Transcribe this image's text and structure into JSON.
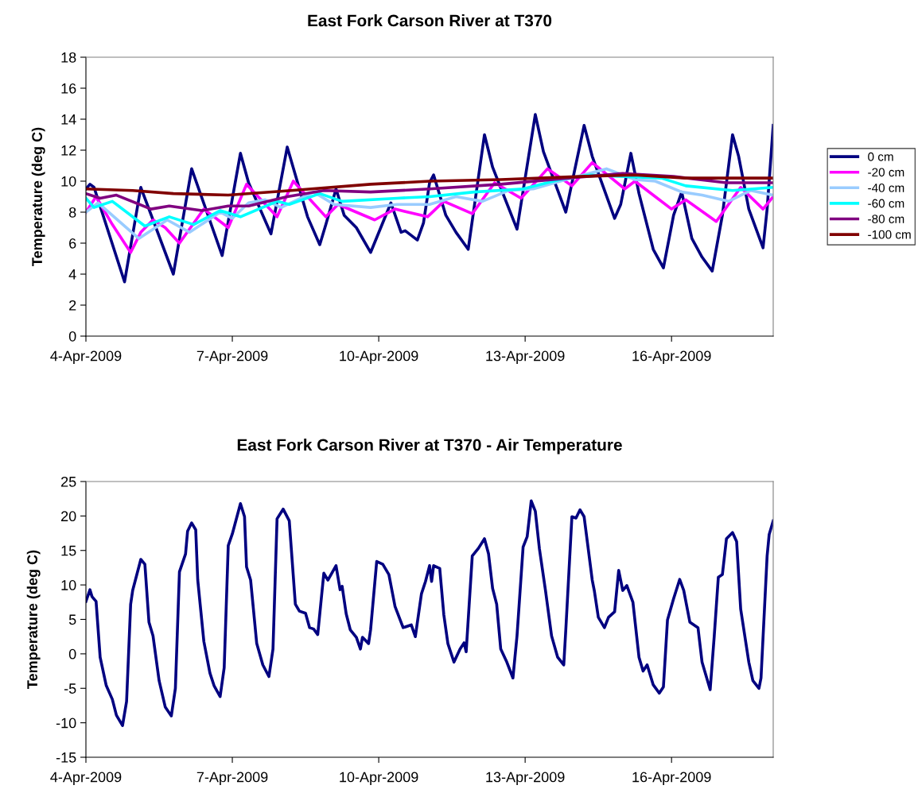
{
  "chart_data": [
    {
      "type": "line",
      "title": "East Fork Carson River at T370",
      "ylabel": "Temperature (deg C)",
      "xlim": [
        "2009-04-04T00:00",
        "2009-04-18T02:00"
      ],
      "xticks": [
        {
          "value": "2009-04-04",
          "label": "4-Apr-2009"
        },
        {
          "value": "2009-04-07",
          "label": "7-Apr-2009"
        },
        {
          "value": "2009-04-10",
          "label": "10-Apr-2009"
        },
        {
          "value": "2009-04-13",
          "label": "13-Apr-2009"
        },
        {
          "value": "2009-04-16",
          "label": "16-Apr-2009"
        }
      ],
      "ylim": [
        0,
        18
      ],
      "yticks": [
        0,
        2,
        4,
        6,
        8,
        10,
        12,
        14,
        16,
        18
      ],
      "grid": false,
      "legend": "right",
      "series": [
        {
          "name": "0 cm",
          "color": "#000080",
          "x": [
            "2009-04-04T00:00",
            "2009-04-04T02:00",
            "2009-04-04T04:00",
            "2009-04-04T19:00",
            "2009-04-05T03:00",
            "2009-04-05T19:00",
            "2009-04-06T04:00",
            "2009-04-06T19:00",
            "2009-04-07T04:00",
            "2009-04-07T08:00",
            "2009-04-07T19:00",
            "2009-04-08T03:00",
            "2009-04-08T13:00",
            "2009-04-08T19:00",
            "2009-04-08T22:00",
            "2009-04-09T03:00",
            "2009-04-09T07:00",
            "2009-04-09T13:00",
            "2009-04-09T20:00",
            "2009-04-10T06:00",
            "2009-04-10T11:00",
            "2009-04-10T13:00",
            "2009-04-10T19:00",
            "2009-04-10T22:00",
            "2009-04-11T01:00",
            "2009-04-11T03:00",
            "2009-04-11T09:00",
            "2009-04-11T14:00",
            "2009-04-11T20:00",
            "2009-04-12T04:00",
            "2009-04-12T08:00",
            "2009-04-12T20:00",
            "2009-04-13T05:00",
            "2009-04-13T09:00",
            "2009-04-13T20:00",
            "2009-04-14T05:00",
            "2009-04-14T09:00",
            "2009-04-14T20:00",
            "2009-04-14T23:00",
            "2009-04-15T04:00",
            "2009-04-15T08:00",
            "2009-04-15T15:00",
            "2009-04-15T20:00",
            "2009-04-16T01:00",
            "2009-04-16T05:00",
            "2009-04-16T10:00",
            "2009-04-16T15:00",
            "2009-04-16T20:00",
            "2009-04-17T01:00",
            "2009-04-17T06:00",
            "2009-04-17T09:00",
            "2009-04-17T14:00",
            "2009-04-17T21:00",
            "2009-04-17T23:00",
            "2009-04-18T02:00"
          ],
          "values": [
            9.5,
            9.8,
            9.6,
            3.5,
            9.6,
            4.0,
            10.8,
            5.2,
            11.8,
            9.9,
            6.6,
            12.2,
            7.7,
            5.9,
            7.2,
            9.5,
            7.8,
            7.0,
            5.4,
            8.6,
            6.7,
            6.8,
            6.2,
            7.3,
            9.9,
            10.4,
            7.8,
            6.7,
            5.6,
            13.0,
            10.9,
            6.9,
            14.3,
            11.9,
            8.0,
            13.6,
            11.6,
            7.6,
            8.5,
            11.8,
            9.2,
            5.6,
            4.4,
            7.8,
            9.3,
            6.3,
            5.1,
            4.2,
            7.8,
            13.0,
            11.6,
            8.2,
            5.7,
            8.2,
            13.6
          ]
        },
        {
          "name": "-20 cm",
          "color": "#ff00ff",
          "x": [
            "2009-04-04T00:00",
            "2009-04-04T05:00",
            "2009-04-04T13:00",
            "2009-04-04T22:00",
            "2009-04-05T03:00",
            "2009-04-05T09:00",
            "2009-04-05T15:00",
            "2009-04-05T22:00",
            "2009-04-06T10:00",
            "2009-04-06T22:00",
            "2009-04-07T07:00",
            "2009-04-07T22:00",
            "2009-04-08T06:00",
            "2009-04-08T22:00",
            "2009-04-09T04:00",
            "2009-04-09T13:00",
            "2009-04-09T22:00",
            "2009-04-10T08:00",
            "2009-04-11T00:00",
            "2009-04-11T08:00",
            "2009-04-11T22:00",
            "2009-04-12T09:00",
            "2009-04-12T22:00",
            "2009-04-13T11:00",
            "2009-04-13T23:00",
            "2009-04-14T09:00",
            "2009-04-15T01:00",
            "2009-04-15T06:00",
            "2009-04-15T16:00",
            "2009-04-16T00:00",
            "2009-04-16T07:00",
            "2009-04-16T22:00",
            "2009-04-17T10:00",
            "2009-04-17T21:00",
            "2009-04-18T02:00"
          ],
          "values": [
            8.0,
            9.0,
            7.2,
            5.4,
            6.7,
            7.5,
            7.0,
            6.0,
            8.2,
            7.0,
            9.8,
            7.7,
            10.0,
            7.7,
            8.5,
            8.0,
            7.5,
            8.2,
            7.7,
            8.7,
            7.9,
            9.9,
            8.9,
            10.8,
            9.7,
            11.2,
            9.5,
            10.0,
            9.0,
            8.2,
            8.8,
            7.4,
            9.6,
            8.2,
            9.0
          ]
        },
        {
          "name": "-40 cm",
          "color": "#99ccff",
          "x": [
            "2009-04-04T00:00",
            "2009-04-04T06:00",
            "2009-04-05T02:00",
            "2009-04-05T16:00",
            "2009-04-06T03:00",
            "2009-04-06T18:00",
            "2009-04-07T00:00",
            "2009-04-07T08:00",
            "2009-04-07T16:00",
            "2009-04-08T00:00",
            "2009-04-08T16:00",
            "2009-04-09T02:00",
            "2009-04-09T20:00",
            "2009-04-10T09:00",
            "2009-04-11T01:00",
            "2009-04-11T14:00",
            "2009-04-12T03:00",
            "2009-04-12T16:00",
            "2009-04-13T04:00",
            "2009-04-13T20:00",
            "2009-04-14T16:00",
            "2009-04-15T06:00",
            "2009-04-15T16:00",
            "2009-04-16T05:00",
            "2009-04-16T15:00",
            "2009-04-17T04:00",
            "2009-04-17T15:00",
            "2009-04-18T02:00"
          ],
          "values": [
            8.0,
            8.6,
            6.3,
            7.5,
            6.7,
            8.0,
            7.6,
            8.6,
            8.8,
            8.3,
            9.3,
            8.5,
            8.3,
            8.5,
            8.5,
            9.0,
            8.7,
            9.4,
            9.5,
            10.1,
            10.8,
            10.1,
            10.0,
            9.3,
            9.1,
            8.7,
            9.4,
            9.1
          ]
        },
        {
          "name": "-60 cm",
          "color": "#00ffff",
          "x": [
            "2009-04-04T00:00",
            "2009-04-04T04:00",
            "2009-04-04T13:00",
            "2009-04-05T05:00",
            "2009-04-05T17:00",
            "2009-04-06T05:00",
            "2009-04-06T18:00",
            "2009-04-07T04:00",
            "2009-04-07T22:00",
            "2009-04-08T04:00",
            "2009-04-08T19:00",
            "2009-04-09T06:00",
            "2009-04-10T09:00",
            "2009-04-11T01:00",
            "2009-04-11T23:00",
            "2009-04-12T23:00",
            "2009-04-13T17:00",
            "2009-04-14T08:00",
            "2009-04-15T19:00",
            "2009-04-16T07:00",
            "2009-04-17T06:00",
            "2009-04-18T02:00"
          ],
          "values": [
            8.9,
            8.3,
            8.7,
            7.1,
            7.7,
            7.2,
            8.1,
            7.7,
            8.7,
            8.5,
            9.2,
            8.7,
            8.9,
            9.0,
            9.3,
            9.5,
            10.1,
            10.4,
            10.2,
            9.7,
            9.4,
            9.6
          ]
        },
        {
          "name": "-80 cm",
          "color": "#800080",
          "x": [
            "2009-04-04T00:00",
            "2009-04-04T07:00",
            "2009-04-04T15:00",
            "2009-04-05T08:00",
            "2009-04-05T17:00",
            "2009-04-06T09:00",
            "2009-04-06T22:00",
            "2009-04-07T08:00",
            "2009-04-08T03:00",
            "2009-04-08T21:00",
            "2009-04-09T20:00",
            "2009-04-11T01:00",
            "2009-04-12T12:00",
            "2009-04-13T21:00",
            "2009-04-15T00:00",
            "2009-04-16T01:00",
            "2009-04-17T03:00",
            "2009-04-18T02:00"
          ],
          "values": [
            9.2,
            8.9,
            9.1,
            8.2,
            8.4,
            8.1,
            8.4,
            8.4,
            9.0,
            9.4,
            9.3,
            9.5,
            9.8,
            10.2,
            10.5,
            10.3,
            9.9,
            9.9
          ]
        },
        {
          "name": "-100 cm",
          "color": "#800000",
          "x": [
            "2009-04-04T00:00",
            "2009-04-04T23:00",
            "2009-04-05T19:00",
            "2009-04-06T22:00",
            "2009-04-08T05:00",
            "2009-04-09T20:00",
            "2009-04-11T01:00",
            "2009-04-12T12:00",
            "2009-04-14T03:00",
            "2009-04-15T06:00",
            "2009-04-16T07:00",
            "2009-04-18T02:00"
          ],
          "values": [
            9.5,
            9.4,
            9.2,
            9.1,
            9.4,
            9.8,
            10.0,
            10.1,
            10.3,
            10.4,
            10.2,
            10.2
          ]
        }
      ]
    },
    {
      "type": "line",
      "title": "East Fork Carson River at T370 - Air Temperature",
      "ylabel": "Temperature (deg C)",
      "xlim": [
        "2009-04-04T00:00",
        "2009-04-18T02:00"
      ],
      "xticks": [
        {
          "value": "2009-04-04",
          "label": "4-Apr-2009"
        },
        {
          "value": "2009-04-07",
          "label": "7-Apr-2009"
        },
        {
          "value": "2009-04-10",
          "label": "10-Apr-2009"
        },
        {
          "value": "2009-04-13",
          "label": "13-Apr-2009"
        },
        {
          "value": "2009-04-16",
          "label": "16-Apr-2009"
        }
      ],
      "ylim": [
        -15,
        25
      ],
      "yticks": [
        -15,
        -10,
        -5,
        0,
        5,
        10,
        15,
        20,
        25
      ],
      "grid": false,
      "series": [
        {
          "color": "#000080",
          "x": [
            "2009-04-04T00:00",
            "2009-04-04T02:00",
            "2009-04-04T03:00",
            "2009-04-04T05:00",
            "2009-04-04T07:00",
            "2009-04-04T10:00",
            "2009-04-04T13:00",
            "2009-04-04T15:00",
            "2009-04-04T18:00",
            "2009-04-04T20:00",
            "2009-04-04T22:00",
            "2009-04-04T23:00",
            "2009-04-05T03:00",
            "2009-04-05T05:00",
            "2009-04-05T07:00",
            "2009-04-05T09:00",
            "2009-04-05T12:00",
            "2009-04-05T15:00",
            "2009-04-05T18:00",
            "2009-04-05T20:00",
            "2009-04-05T22:00",
            "2009-04-06T01:00",
            "2009-04-06T02:00",
            "2009-04-06T04:00",
            "2009-04-06T06:00",
            "2009-04-06T07:00",
            "2009-04-06T10:00",
            "2009-04-06T13:00",
            "2009-04-06T15:00",
            "2009-04-06T18:00",
            "2009-04-06T20:00",
            "2009-04-06T22:00",
            "2009-04-07T00:00",
            "2009-04-07T04:00",
            "2009-04-07T06:00",
            "2009-04-07T07:00",
            "2009-04-07T09:00",
            "2009-04-07T12:00",
            "2009-04-07T15:00",
            "2009-04-07T18:00",
            "2009-04-07T20:00",
            "2009-04-07T22:00",
            "2009-04-08T01:00",
            "2009-04-08T04:00",
            "2009-04-08T07:00",
            "2009-04-08T09:00",
            "2009-04-08T12:00",
            "2009-04-08T14:00",
            "2009-04-08T16:00",
            "2009-04-08T18:00",
            "2009-04-08T21:00",
            "2009-04-08T23:00",
            "2009-04-09T03:00",
            "2009-04-09T05:00",
            "2009-04-09T06:00",
            "2009-04-09T08:00",
            "2009-04-09T10:00",
            "2009-04-09T13:00",
            "2009-04-09T15:00",
            "2009-04-09T16:00",
            "2009-04-09T19:00",
            "2009-04-09T20:00",
            "2009-04-09T23:00",
            "2009-04-10T02:00",
            "2009-04-10T05:00",
            "2009-04-10T08:00",
            "2009-04-10T12:00",
            "2009-04-10T16:00",
            "2009-04-10T18:00",
            "2009-04-10T21:00",
            "2009-04-10T23:00",
            "2009-04-11T01:00",
            "2009-04-11T02:00",
            "2009-04-11T03:00",
            "2009-04-11T06:00",
            "2009-04-11T08:00",
            "2009-04-11T10:00",
            "2009-04-11T13:00",
            "2009-04-11T16:00",
            "2009-04-11T18:00",
            "2009-04-11T19:00",
            "2009-04-11T22:00",
            "2009-04-12T01:00",
            "2009-04-12T04:00",
            "2009-04-12T06:00",
            "2009-04-12T08:00",
            "2009-04-12T10:00",
            "2009-04-12T12:00",
            "2009-04-12T15:00",
            "2009-04-12T18:00",
            "2009-04-12T20:00",
            "2009-04-12T23:00",
            "2009-04-13T01:00",
            "2009-04-13T03:00",
            "2009-04-13T05:00",
            "2009-04-13T07:00",
            "2009-04-13T10:00",
            "2009-04-13T13:00",
            "2009-04-13T16:00",
            "2009-04-13T19:00",
            "2009-04-13T20:00",
            "2009-04-13T23:00",
            "2009-04-14T01:00",
            "2009-04-14T03:00",
            "2009-04-14T05:00",
            "2009-04-14T09:00",
            "2009-04-14T10:00",
            "2009-04-14T12:00",
            "2009-04-14T15:00",
            "2009-04-14T17:00",
            "2009-04-14T20:00",
            "2009-04-14T22:00",
            "2009-04-15T00:00",
            "2009-04-15T02:00",
            "2009-04-15T05:00",
            "2009-04-15T08:00",
            "2009-04-15T10:00",
            "2009-04-15T12:00",
            "2009-04-15T15:00",
            "2009-04-15T18:00",
            "2009-04-15T20:00",
            "2009-04-15T22:00",
            "2009-04-16T01:00",
            "2009-04-16T04:00",
            "2009-04-16T06:00",
            "2009-04-16T09:00",
            "2009-04-16T13:00",
            "2009-04-16T15:00",
            "2009-04-16T19:00",
            "2009-04-16T21:00",
            "2009-04-16T23:00",
            "2009-04-17T01:00",
            "2009-04-17T03:00",
            "2009-04-17T06:00",
            "2009-04-17T08:00",
            "2009-04-17T10:00",
            "2009-04-17T14:00",
            "2009-04-17T16:00",
            "2009-04-17T19:00",
            "2009-04-17T20:00",
            "2009-04-17T23:00",
            "2009-04-18T00:00",
            "2009-04-18T02:00"
          ],
          "values": [
            7.6,
            9.3,
            8.3,
            7.6,
            -0.5,
            -4.6,
            -6.6,
            -8.9,
            -10.4,
            -6.9,
            7.2,
            9.2,
            13.7,
            13.0,
            4.6,
            2.6,
            -3.9,
            -7.7,
            -9.0,
            -5.0,
            11.9,
            14.5,
            17.8,
            19.0,
            18.0,
            10.7,
            1.8,
            -2.8,
            -4.6,
            -6.2,
            -2.0,
            15.7,
            17.4,
            21.8,
            19.9,
            12.6,
            10.7,
            1.5,
            -1.6,
            -3.3,
            0.7,
            19.6,
            21.0,
            19.3,
            7.2,
            6.2,
            5.9,
            3.8,
            3.6,
            2.8,
            11.7,
            10.7,
            12.8,
            9.3,
            9.8,
            5.8,
            3.5,
            2.4,
            0.7,
            2.4,
            1.5,
            3.5,
            13.4,
            13.0,
            11.5,
            6.9,
            3.8,
            4.2,
            2.5,
            8.7,
            10.5,
            12.8,
            10.5,
            12.8,
            12.4,
            5.7,
            1.5,
            -1.2,
            0.7,
            1.6,
            0.3,
            14.2,
            15.3,
            16.7,
            14.5,
            9.5,
            7.2,
            0.7,
            -1.2,
            -3.5,
            2.6,
            15.5,
            17.0,
            22.2,
            20.7,
            15.3,
            9.2,
            2.6,
            -0.5,
            -1.6,
            3.5,
            19.9,
            19.7,
            20.9,
            19.9,
            10.7,
            9.2,
            5.3,
            3.8,
            5.3,
            6.1,
            12.1,
            9.2,
            9.9,
            7.5,
            -0.5,
            -2.5,
            -1.6,
            -4.5,
            -5.7,
            -4.8,
            4.9,
            8.0,
            10.8,
            9.2,
            4.6,
            3.8,
            -1.2,
            -5.2,
            2.6,
            11.1,
            11.5,
            16.7,
            17.6,
            16.3,
            6.5,
            -1.2,
            -3.9,
            -5.0,
            -3.5,
            14.2,
            17.3,
            19.3
          ]
        }
      ]
    }
  ]
}
